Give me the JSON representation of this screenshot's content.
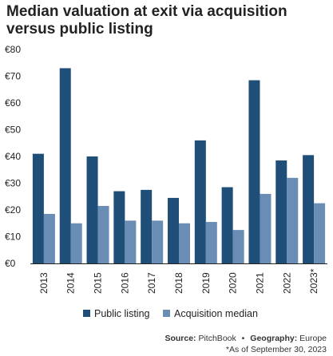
{
  "colors": {
    "public_listing": "#1f4e79",
    "acquisition": "#6a8db5",
    "axis": "#222222",
    "text": "#222222"
  },
  "footer": {
    "source_label": "Source:",
    "source_value": "PitchBook",
    "bullet": "•",
    "geography_label": "Geography:",
    "geography_value": "Europe",
    "note": "*As of September 30, 2023"
  },
  "chart_data": {
    "type": "bar",
    "title": "Median valuation at exit via acquisition versus public listing",
    "categories": [
      "2013",
      "2014",
      "2015",
      "2016",
      "2017",
      "2018",
      "2019",
      "2020",
      "2021",
      "2022",
      "2023*"
    ],
    "series": [
      {
        "name": "Public listing",
        "values": [
          41,
          73,
          40,
          27,
          27.5,
          24.5,
          46,
          28.5,
          68.5,
          38.5,
          40.5
        ]
      },
      {
        "name": "Acquisition median",
        "values": [
          18.5,
          15,
          21.5,
          16,
          16,
          15,
          15.5,
          12.5,
          26,
          32,
          22.5
        ]
      }
    ],
    "ylim": [
      0,
      80
    ],
    "yticks": [
      "€0",
      "€10",
      "€20",
      "€30",
      "€40",
      "€50",
      "€60",
      "€70",
      "€80"
    ],
    "ytick_values": [
      0,
      10,
      20,
      30,
      40,
      50,
      60,
      70,
      80
    ],
    "legend_position": "bottom-center",
    "grid": false
  }
}
